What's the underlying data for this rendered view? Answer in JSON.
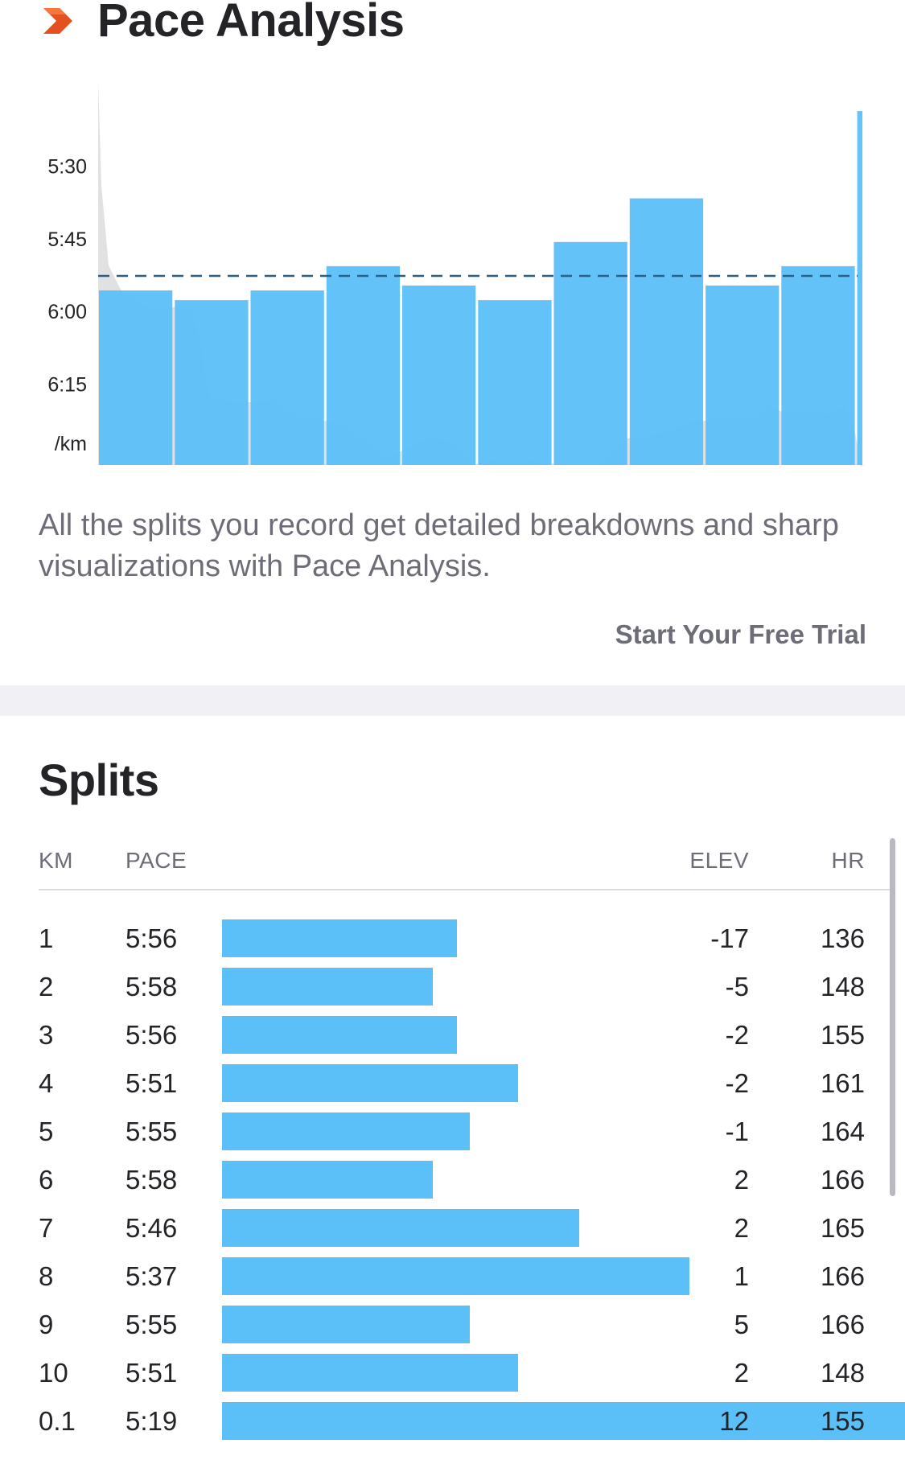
{
  "pace_analysis": {
    "title": "Pace Analysis",
    "logo_icon": "chevron-right-logo-icon",
    "logo_color": "#fc5200",
    "description": "All the splits you record get detailed breakdowns and sharp visualizations with Pace Analysis.",
    "cta_label": "Start Your Free Trial"
  },
  "chart_data": {
    "type": "bar",
    "title": "Pace Analysis",
    "y_unit_label": "/km",
    "y_ticks": [
      "5:30",
      "5:45",
      "6:00",
      "6:15"
    ],
    "y_inverted": true,
    "y_range_seconds": [
      316,
      392
    ],
    "average_line_seconds": 353,
    "average_line_style": "dashed",
    "categories": [
      "1",
      "2",
      "3",
      "4",
      "5",
      "6",
      "7",
      "8",
      "9",
      "10",
      "0.1"
    ],
    "values": [
      "5:56",
      "5:58",
      "5:56",
      "5:51",
      "5:55",
      "5:58",
      "5:46",
      "5:37",
      "5:55",
      "5:51",
      "5:19"
    ],
    "values_seconds": [
      356,
      358,
      356,
      351,
      355,
      358,
      346,
      337,
      355,
      351,
      319
    ],
    "split_widths_km": [
      1,
      1,
      1,
      1,
      1,
      1,
      1,
      1,
      1,
      1,
      0.1
    ],
    "bar_color": "#5bbff8",
    "background_area": "elevation profile (grey)",
    "grid": false
  },
  "splits": {
    "title": "Splits",
    "headers": {
      "km": "KM",
      "pace": "PACE",
      "elev": "ELEV",
      "hr": "HR"
    },
    "bar_color": "#5bbff8",
    "rows": [
      {
        "km": "1",
        "pace": "5:56",
        "pace_seconds": 356,
        "elev": "-17",
        "hr": "136"
      },
      {
        "km": "2",
        "pace": "5:58",
        "pace_seconds": 358,
        "elev": "-5",
        "hr": "148"
      },
      {
        "km": "3",
        "pace": "5:56",
        "pace_seconds": 356,
        "elev": "-2",
        "hr": "155"
      },
      {
        "km": "4",
        "pace": "5:51",
        "pace_seconds": 351,
        "elev": "-2",
        "hr": "161"
      },
      {
        "km": "5",
        "pace": "5:55",
        "pace_seconds": 355,
        "elev": "-1",
        "hr": "164"
      },
      {
        "km": "6",
        "pace": "5:58",
        "pace_seconds": 358,
        "elev": "2",
        "hr": "166"
      },
      {
        "km": "7",
        "pace": "5:46",
        "pace_seconds": 346,
        "elev": "2",
        "hr": "165"
      },
      {
        "km": "8",
        "pace": "5:37",
        "pace_seconds": 337,
        "elev": "1",
        "hr": "166"
      },
      {
        "km": "9",
        "pace": "5:55",
        "pace_seconds": 355,
        "elev": "5",
        "hr": "166"
      },
      {
        "km": "10",
        "pace": "5:51",
        "pace_seconds": 351,
        "elev": "2",
        "hr": "148"
      },
      {
        "km": "0.1",
        "pace": "5:19",
        "pace_seconds": 319,
        "elev": "12",
        "hr": "155"
      }
    ]
  }
}
